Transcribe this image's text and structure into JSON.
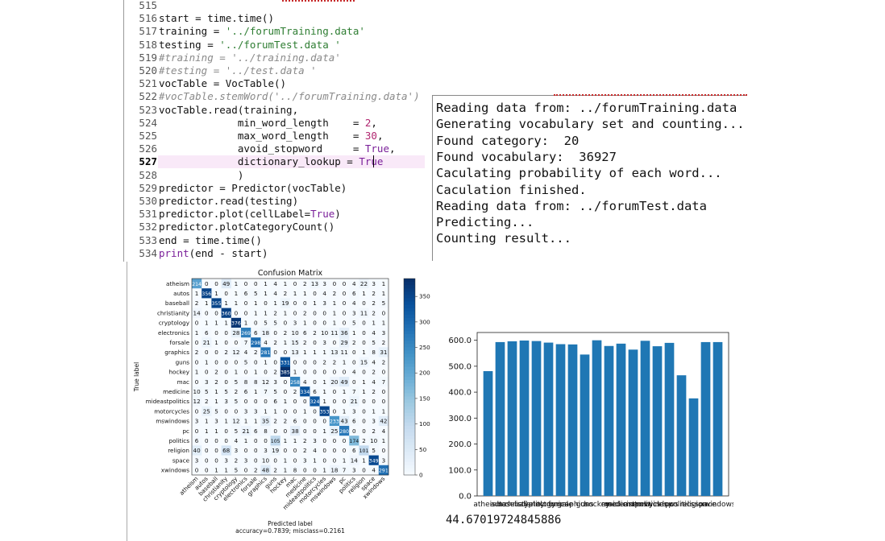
{
  "editor": {
    "current_line": "527",
    "lines": [
      {
        "n": "515",
        "segs": []
      },
      {
        "n": "516",
        "segs": [
          [
            "start = time.time()",
            ""
          ]
        ]
      },
      {
        "n": "517",
        "segs": [
          [
            "training = ",
            ""
          ],
          [
            "'../forumTraining.data'",
            "str"
          ]
        ]
      },
      {
        "n": "518",
        "segs": [
          [
            "testing = ",
            ""
          ],
          [
            "'../forumTest.data '",
            "str"
          ]
        ]
      },
      {
        "n": "519",
        "segs": [
          [
            "#training = '../training.data'",
            "cmt"
          ]
        ]
      },
      {
        "n": "520",
        "segs": [
          [
            "#testing = '../test.data '",
            "cmt"
          ]
        ]
      },
      {
        "n": "521",
        "segs": [
          [
            "vocTable = VocTable()",
            ""
          ]
        ]
      },
      {
        "n": "522",
        "segs": [
          [
            "#vocTable.stemWord('../forumTraining.data')",
            "cmt"
          ]
        ]
      },
      {
        "n": "523",
        "segs": [
          [
            "vocTable.read(training,",
            ""
          ]
        ]
      },
      {
        "n": "524",
        "segs": [
          [
            "             min_word_length    = ",
            ""
          ],
          [
            "2",
            "num"
          ],
          [
            ",",
            ""
          ]
        ]
      },
      {
        "n": "525",
        "segs": [
          [
            "             max_word_length    = ",
            ""
          ],
          [
            "30",
            "num"
          ],
          [
            ",",
            ""
          ]
        ]
      },
      {
        "n": "526",
        "segs": [
          [
            "             avoid_stopword     = ",
            ""
          ],
          [
            "True",
            "kw"
          ],
          [
            ",",
            ""
          ]
        ]
      },
      {
        "n": "527",
        "segs": [
          [
            "             dictionary_lookup = ",
            ""
          ],
          [
            "True",
            "kw"
          ]
        ]
      },
      {
        "n": "528",
        "segs": [
          [
            "             )",
            ""
          ]
        ]
      },
      {
        "n": "529",
        "segs": [
          [
            "predictor = Predictor(vocTable)",
            ""
          ]
        ]
      },
      {
        "n": "530",
        "segs": [
          [
            "predictor.read(testing)",
            ""
          ]
        ]
      },
      {
        "n": "531",
        "segs": [
          [
            "predictor.plot(cellLabel=",
            ""
          ],
          [
            "True",
            "kw"
          ],
          [
            ")",
            ""
          ]
        ]
      },
      {
        "n": "532",
        "segs": [
          [
            "predictor.plotCategoryCount()",
            ""
          ]
        ]
      },
      {
        "n": "533",
        "segs": [
          [
            "end = time.time()",
            ""
          ]
        ]
      },
      {
        "n": "534",
        "segs": [
          [
            "print",
            "kw"
          ],
          [
            "(end - start)",
            ""
          ]
        ]
      }
    ]
  },
  "console": {
    "lines": [
      "Reading data from: ../forumTraining.data",
      "Generating vocabulary set and counting...",
      "Found category:  20",
      "Found vocabulary:  36927",
      "Caculating probability of each word...",
      "Caculation finished.",
      "Reading data from: ../forumTest.data",
      "Predicting...",
      "Counting result..."
    ]
  },
  "chart_data": [
    {
      "type": "heatmap",
      "title": "Confusion Matrix",
      "xlabel": "Predicted label",
      "ylabel": "True label",
      "footer": "accuracy=0.7839; misclass=0.2161",
      "colormap": "Blues",
      "colorbar_ticks": [
        0,
        50,
        100,
        150,
        200,
        250,
        300,
        350
      ],
      "vmax": 385,
      "labels": [
        "atheism",
        "autos",
        "baseball",
        "christianity",
        "cryptology",
        "electronics",
        "forsale",
        "graphics",
        "guns",
        "hockey",
        "mac",
        "medicine",
        "mideastpolitics",
        "motorcycles",
        "mswindows",
        "pc",
        "politics",
        "religion",
        "space",
        "xwindows"
      ],
      "matrix": [
        [
          214,
          0,
          0,
          49,
          1,
          0,
          0,
          1,
          4,
          1,
          0,
          2,
          13,
          3,
          0,
          0,
          4,
          22,
          3,
          1
        ],
        [
          1,
          356,
          1,
          0,
          1,
          6,
          5,
          1,
          4,
          2,
          1,
          1,
          0,
          4,
          2,
          0,
          6,
          1,
          2,
          1
        ],
        [
          2,
          1,
          355,
          1,
          1,
          0,
          1,
          0,
          1,
          19,
          0,
          0,
          1,
          3,
          1,
          0,
          4,
          0,
          2,
          5
        ],
        [
          14,
          0,
          0,
          360,
          0,
          0,
          1,
          1,
          2,
          1,
          0,
          2,
          0,
          0,
          1,
          0,
          3,
          11,
          2,
          0
        ],
        [
          0,
          1,
          1,
          1,
          376,
          1,
          0,
          5,
          5,
          0,
          3,
          1,
          0,
          0,
          1,
          0,
          5,
          0,
          1,
          1
        ],
        [
          1,
          6,
          0,
          0,
          28,
          269,
          6,
          18,
          0,
          2,
          10,
          6,
          2,
          10,
          11,
          36,
          1,
          0,
          4,
          3
        ],
        [
          0,
          21,
          1,
          0,
          0,
          7,
          298,
          4,
          2,
          1,
          15,
          2,
          0,
          3,
          0,
          29,
          2,
          0,
          5,
          2
        ],
        [
          2,
          0,
          0,
          2,
          12,
          4,
          2,
          281,
          0,
          0,
          13,
          1,
          1,
          1,
          13,
          11,
          0,
          1,
          8,
          31
        ],
        [
          0,
          1,
          0,
          0,
          0,
          5,
          0,
          1,
          0,
          331,
          0,
          0,
          0,
          2,
          2,
          1,
          0,
          15,
          4,
          2
        ],
        [
          1,
          0,
          2,
          0,
          1,
          0,
          1,
          0,
          2,
          385,
          1,
          0,
          0,
          0,
          0,
          0,
          4,
          0,
          2,
          0
        ],
        [
          0,
          3,
          2,
          0,
          5,
          8,
          8,
          12,
          3,
          0,
          258,
          4,
          0,
          1,
          20,
          49,
          0,
          1,
          4,
          7
        ],
        [
          10,
          5,
          1,
          5,
          2,
          6,
          1,
          7,
          5,
          0,
          2,
          334,
          6,
          1,
          0,
          1,
          7,
          1,
          2,
          0
        ],
        [
          12,
          2,
          1,
          3,
          5,
          0,
          0,
          0,
          6,
          1,
          0,
          0,
          324,
          1,
          0,
          0,
          21,
          0,
          0,
          0
        ],
        [
          0,
          25,
          5,
          0,
          0,
          3,
          3,
          1,
          1,
          0,
          0,
          1,
          0,
          353,
          0,
          1,
          3,
          0,
          1,
          1
        ],
        [
          3,
          1,
          3,
          1,
          12,
          1,
          1,
          35,
          2,
          2,
          6,
          0,
          0,
          0,
          233,
          43,
          6,
          0,
          3,
          42
        ],
        [
          0,
          1,
          1,
          0,
          5,
          21,
          6,
          8,
          0,
          0,
          38,
          0,
          0,
          1,
          25,
          280,
          0,
          0,
          2,
          4
        ],
        [
          6,
          0,
          0,
          0,
          4,
          1,
          0,
          0,
          105,
          1,
          1,
          2,
          3,
          0,
          0,
          0,
          174,
          2,
          10,
          1
        ],
        [
          40,
          0,
          0,
          68,
          3,
          0,
          0,
          3,
          19,
          0,
          0,
          2,
          4,
          0,
          0,
          0,
          6,
          101,
          5,
          0
        ],
        [
          3,
          0,
          0,
          3,
          2,
          3,
          0,
          10,
          0,
          1,
          0,
          3,
          1,
          0,
          0,
          1,
          14,
          1,
          349,
          3
        ],
        [
          0,
          0,
          1,
          1,
          5,
          0,
          2,
          48,
          2,
          1,
          8,
          0,
          0,
          1,
          18,
          7,
          3,
          0,
          4,
          291
        ]
      ]
    },
    {
      "type": "bar",
      "categories": [
        "atheism",
        "autos",
        "baseball",
        "christianity",
        "cryptology",
        "electronics",
        "forsale",
        "graphics",
        "guns",
        "hockey",
        "mac",
        "medicine",
        "mideastpolitics",
        "motorcycles",
        "mswindows",
        "pc",
        "politics",
        "religion",
        "space",
        "xwindows"
      ],
      "values": [
        481,
        593,
        596,
        599,
        597,
        591,
        585,
        584,
        545,
        600,
        578,
        587,
        564,
        598,
        577,
        590,
        465,
        376,
        593,
        593
      ],
      "yticks": [
        "0.0",
        "100.0",
        "200.0",
        "300.0",
        "400.0",
        "500.0",
        "600.0"
      ],
      "ylim": [
        0,
        630
      ],
      "color": "#1f77b4"
    }
  ],
  "elapsed_output": "44.67019724845886"
}
